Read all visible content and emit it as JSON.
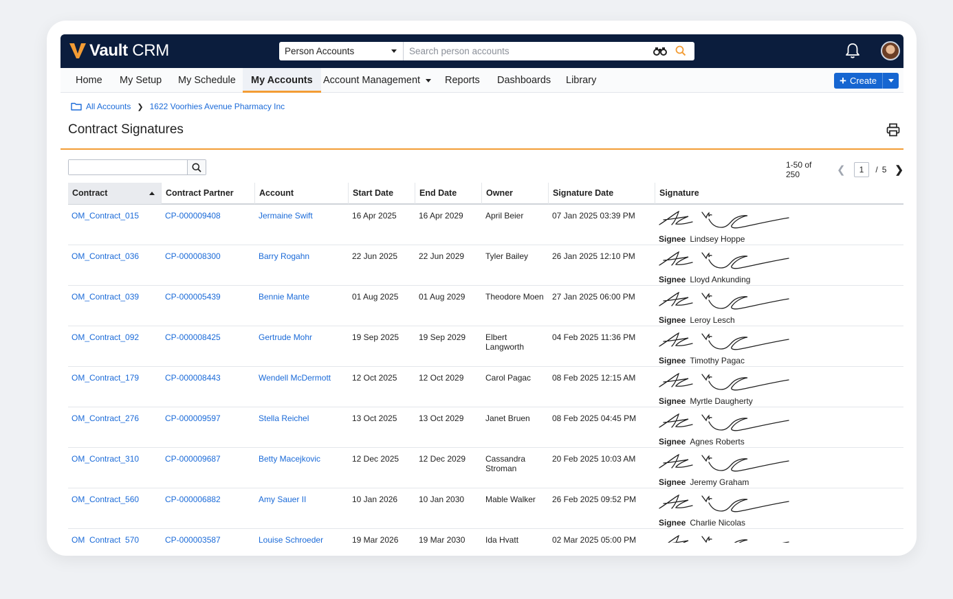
{
  "app": {
    "brand_prefix": "Vault",
    "brand_suffix": "CRM"
  },
  "search": {
    "scope": "Person Accounts",
    "placeholder": "Search person accounts"
  },
  "nav": {
    "items": [
      "Home",
      "My Setup",
      "My Schedule",
      "My Accounts",
      "Account Management",
      "Reports",
      "Dashboards",
      "Library"
    ],
    "active": "My Accounts",
    "create_label": "Create"
  },
  "breadcrumb": {
    "root": "All Accounts",
    "current": "1622 Voorhies Avenue Pharmacy Inc"
  },
  "page": {
    "title": "Contract Signatures"
  },
  "pager": {
    "range": "1-50 of 250",
    "current_page": "1",
    "total_pages": "5",
    "separator": "/"
  },
  "table": {
    "columns": [
      "Contract",
      "Contract Partner",
      "Account",
      "Start Date",
      "End Date",
      "Owner",
      "Signature Date",
      "Signature"
    ],
    "sorted_column": "Contract",
    "signee_label": "Signee",
    "rows": [
      {
        "contract": "OM_Contract_015",
        "partner": "CP-000009408",
        "account": "Jermaine Swift",
        "start": "16 Apr 2025",
        "end": "16 Apr 2029",
        "owner": "April Beier",
        "sig_date": "07 Jan 2025 03:39 PM",
        "signee": "Lindsey Hoppe"
      },
      {
        "contract": "OM_Contract_036",
        "partner": "CP-000008300",
        "account": "Barry Rogahn",
        "start": "22 Jun 2025",
        "end": "22 Jun 2029",
        "owner": "Tyler Bailey",
        "sig_date": "26 Jan 2025 12:10 PM",
        "signee": "Lloyd Ankunding"
      },
      {
        "contract": "OM_Contract_039",
        "partner": "CP-000005439",
        "account": "Bennie Mante",
        "start": "01 Aug 2025",
        "end": "01 Aug 2029",
        "owner": "Theodore Moen",
        "sig_date": "27 Jan 2025 06:00 PM",
        "signee": "Leroy Lesch"
      },
      {
        "contract": "OM_Contract_092",
        "partner": "CP-000008425",
        "account": "Gertrude Mohr",
        "start": "19 Sep 2025",
        "end": "19 Sep 2029",
        "owner": "Elbert Langworth",
        "sig_date": "04 Feb 2025 11:36 PM",
        "signee": "Timothy Pagac"
      },
      {
        "contract": "OM_Contract_179",
        "partner": "CP-000008443",
        "account": "Wendell McDermott",
        "start": "12 Oct 2025",
        "end": "12 Oct 2029",
        "owner": "Carol Pagac",
        "sig_date": "08 Feb 2025 12:15 AM",
        "signee": "Myrtle Daugherty"
      },
      {
        "contract": "OM_Contract_276",
        "partner": "CP-000009597",
        "account": "Stella Reichel",
        "start": "13 Oct 2025",
        "end": "13 Oct 2029",
        "owner": "Janet Bruen",
        "sig_date": "08 Feb 2025 04:45 PM",
        "signee": "Agnes Roberts"
      },
      {
        "contract": "OM_Contract_310",
        "partner": "CP-000009687",
        "account": "Betty Macejkovic",
        "start": "12 Dec 2025",
        "end": "12 Dec 2029",
        "owner": "Cassandra Stroman",
        "sig_date": "20 Feb 2025 10:03 AM",
        "signee": "Jeremy Graham"
      },
      {
        "contract": "OM_Contract_560",
        "partner": "CP-000006882",
        "account": "Amy Sauer II",
        "start": "10 Jan 2026",
        "end": "10 Jan 2030",
        "owner": "Mable Walker",
        "sig_date": "26 Feb 2025 09:52 PM",
        "signee": "Charlie Nicolas"
      },
      {
        "contract": "OM_Contract_570",
        "partner": "CP-000003587",
        "account": "Louise Schroeder",
        "start": "19 Mar 2026",
        "end": "19 Mar 2030",
        "owner": "Ida Hyatt",
        "sig_date": "02 Mar 2025 05:00 PM",
        "signee": ""
      }
    ]
  },
  "icons": {
    "search_scope_caret": "chevron-down-icon",
    "binoculars": "binoculars-icon",
    "search": "search-icon",
    "notifications": "bell-icon",
    "folder": "folder-icon",
    "print": "printer-icon"
  },
  "colors": {
    "header_bg": "#0b1d3d",
    "brand_orange": "#f39c34",
    "link_blue": "#1a6ad8",
    "primary_button": "#1666d1"
  }
}
